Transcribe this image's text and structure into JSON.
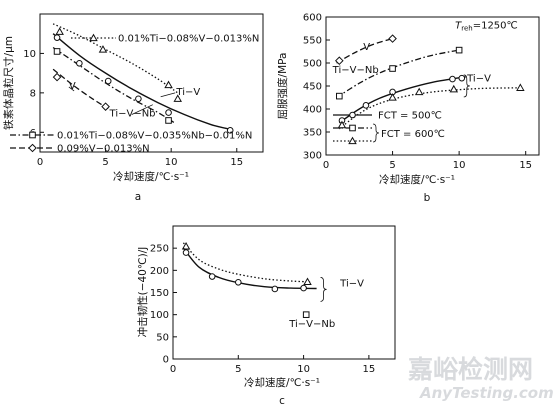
{
  "watermark": {
    "cn": "嘉峪检测网",
    "en": "AnyTesting.com"
  },
  "chart_data": [
    {
      "id": "a",
      "type": "line",
      "panel_label": "a",
      "xlabel": "冷却速度/℃·s⁻¹",
      "ylabel": "铁素体晶粒尺寸/μm",
      "xlim": [
        0,
        17
      ],
      "ylim": [
        5,
        12
      ],
      "xticks": [
        0,
        5,
        10,
        15
      ],
      "yticks": [
        6,
        8,
        10
      ],
      "annotations": [
        {
          "text": "Ti−V",
          "x": 10.4,
          "y": 7.9
        },
        {
          "text": "V",
          "x": 2.2,
          "y": 8.2
        },
        {
          "text": "Ti−V−Nb",
          "x": 5.3,
          "y": 6.8
        }
      ],
      "legend": [
        {
          "series": 0,
          "text": "0.01%Ti−0.08%V−0.013%N"
        },
        {
          "series": 1,
          "text": "0.01%Ti−0.08%V−0.035%Nb−0.01%N"
        },
        {
          "series": 2,
          "text": "0.09%V−0.013%N"
        }
      ],
      "series": [
        {
          "marker": "triangle",
          "dash": "1.5,2.2",
          "points": [
            [
              1.5,
              11.1
            ],
            [
              4.8,
              10.2
            ],
            [
              9.8,
              8.4
            ],
            [
              10.5,
              7.7
            ]
          ],
          "curve": [
            [
              1.0,
              11.5
            ],
            [
              3,
              10.9
            ],
            [
              5,
              10.2
            ],
            [
              7,
              9.5
            ],
            [
              9,
              8.7
            ],
            [
              10.5,
              8.0
            ]
          ]
        },
        {
          "marker": "square",
          "dash": "6,2.5,1.5,2.5",
          "points": [
            [
              1.3,
              10.1
            ],
            [
              9.8,
              6.6
            ]
          ],
          "curve": [
            [
              1.0,
              10.3
            ],
            [
              3,
              9.4
            ],
            [
              5,
              8.5
            ],
            [
              7,
              7.7
            ],
            [
              9,
              7.0
            ],
            [
              10.2,
              6.5
            ]
          ]
        },
        {
          "marker": "diamond",
          "dash": "6,3",
          "points": [
            [
              1.3,
              8.8
            ],
            [
              5.0,
              7.3
            ]
          ],
          "curve": [
            [
              1.0,
              9.2
            ],
            [
              2.5,
              8.4
            ],
            [
              4,
              7.7
            ],
            [
              5.2,
              7.2
            ]
          ]
        },
        {
          "name": "Ti−V",
          "marker": "circle",
          "dash": "",
          "points": [
            [
              1.3,
              10.8
            ],
            [
              3.0,
              9.5
            ],
            [
              5.2,
              8.6
            ],
            [
              7.5,
              7.7
            ],
            [
              9.8,
              7.0
            ],
            [
              14.5,
              6.1
            ]
          ],
          "curve": [
            [
              1.0,
              11.0
            ],
            [
              3,
              9.9
            ],
            [
              5,
              9.0
            ],
            [
              7,
              8.2
            ],
            [
              9,
              7.5
            ],
            [
              11,
              6.9
            ],
            [
              13,
              6.4
            ],
            [
              14.5,
              6.15
            ]
          ]
        }
      ]
    },
    {
      "id": "b",
      "type": "line",
      "panel_label": "b",
      "xlabel": "冷却速度/℃·s⁻¹",
      "ylabel": "屈服强度/MPa",
      "xlim": [
        0,
        16
      ],
      "ylim": [
        300,
        600
      ],
      "xticks": [
        0,
        5,
        10,
        15
      ],
      "yticks": [
        300,
        350,
        400,
        450,
        500,
        550,
        600
      ],
      "annotations": [
        {
          "text": "T",
          "sub": "reh",
          "suffix": "=1250℃",
          "x": 9.7,
          "y": 575
        },
        {
          "text": "V",
          "x": 2.8,
          "y": 528
        },
        {
          "text": "Ti−V−Nb",
          "x": 0.5,
          "y": 478
        },
        {
          "text": "Ti−V",
          "x": 10.6,
          "y": 460
        }
      ],
      "legend": [
        {
          "text": "FCT = 500℃"
        },
        {
          "text": "FCT = 600℃"
        }
      ],
      "series": [
        {
          "marker": "diamond",
          "dash": "6,3",
          "points": [
            [
              1.0,
              505
            ],
            [
              5.0,
              553
            ]
          ],
          "curve": [
            [
              0.8,
              500
            ],
            [
              2,
              520
            ],
            [
              3.5,
              540
            ],
            [
              5,
              553
            ]
          ]
        },
        {
          "marker": "square",
          "dash": "6,2.5,1.5,2.5",
          "points": [
            [
              1.0,
              428
            ],
            [
              5.0,
              488
            ],
            [
              10.0,
              528
            ]
          ],
          "curve": [
            [
              0.8,
              425
            ],
            [
              2.5,
              456
            ],
            [
              4,
              478
            ],
            [
              6,
              500
            ],
            [
              8,
              517
            ],
            [
              10,
              528
            ]
          ]
        },
        {
          "marker": "circle",
          "dash": "",
          "points": [
            [
              1.2,
              375
            ],
            [
              3.0,
              408
            ],
            [
              5.0,
              437
            ],
            [
              9.5,
              465
            ],
            [
              10.2,
              467
            ]
          ],
          "curve": [
            [
              1.0,
              370
            ],
            [
              2.5,
              400
            ],
            [
              4,
              423
            ],
            [
              6,
              443
            ],
            [
              8,
              458
            ],
            [
              10.5,
              470
            ]
          ]
        },
        {
          "marker": "triangle",
          "dash": "1.5,2.2",
          "points": [
            [
              1.2,
              365
            ],
            [
              5.0,
              425
            ],
            [
              7.0,
              437
            ],
            [
              9.6,
              443
            ],
            [
              14.6,
              446
            ]
          ],
          "curve": [
            [
              1.0,
              357
            ],
            [
              2.5,
              390
            ],
            [
              4,
              412
            ],
            [
              6,
              428
            ],
            [
              8,
              437
            ],
            [
              10,
              442
            ],
            [
              12,
              445
            ],
            [
              14.6,
              446
            ]
          ]
        }
      ]
    },
    {
      "id": "c",
      "type": "line",
      "panel_label": "c",
      "xlabel": "冷却速度/℃·s⁻¹",
      "ylabel": "冲击韧性(−40℃)/J",
      "xlim": [
        0,
        17
      ],
      "ylim": [
        0,
        300
      ],
      "xticks": [
        0,
        5,
        10,
        15
      ],
      "yticks": [
        0,
        50,
        100,
        150,
        200,
        250
      ],
      "annotations": [
        {
          "text": "Ti−V",
          "x": 12.8,
          "y": 163
        },
        {
          "text": "Ti−V−Nb",
          "x": 8.9,
          "y": 72
        }
      ],
      "series": [
        {
          "marker": "triangle",
          "dash": "1.5,2.2",
          "points": [
            [
              1.0,
              254
            ],
            [
              10.3,
              174
            ]
          ],
          "curve": [
            [
              0.8,
              262
            ],
            [
              2,
              224
            ],
            [
              3.5,
              203
            ],
            [
              5,
              191
            ],
            [
              7,
              181
            ],
            [
              9,
              176
            ],
            [
              10.5,
              174
            ]
          ]
        },
        {
          "marker": "circle",
          "dash": "",
          "points": [
            [
              1.0,
              240
            ],
            [
              3.0,
              186
            ],
            [
              5.0,
              173
            ],
            [
              7.8,
              158
            ],
            [
              10.0,
              160
            ]
          ],
          "curve": [
            [
              0.8,
              250
            ],
            [
              2,
              207
            ],
            [
              3.5,
              184
            ],
            [
              5,
              172
            ],
            [
              7,
              163
            ],
            [
              9,
              160
            ],
            [
              11,
              159
            ]
          ]
        },
        {
          "name": "Ti−V−Nb",
          "marker": "square",
          "dash": "",
          "points": [
            [
              10.2,
              100
            ]
          ],
          "curve": []
        }
      ]
    }
  ]
}
